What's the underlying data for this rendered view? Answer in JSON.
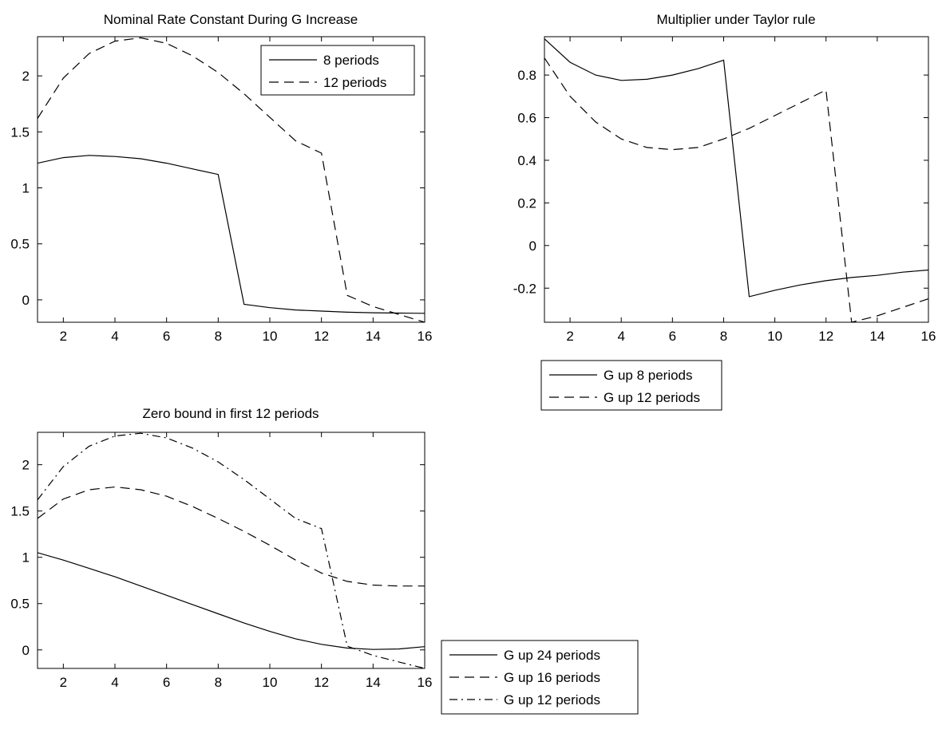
{
  "chart_data": [
    {
      "type": "line",
      "title": "Nominal Rate Constant During G Increase",
      "xlabel": "",
      "ylabel": "",
      "xlim": [
        1,
        16
      ],
      "ylim": [
        -0.2,
        2.35
      ],
      "xticks": [
        2,
        4,
        6,
        8,
        10,
        12,
        14,
        16
      ],
      "yticks": [
        0,
        0.5,
        1,
        1.5,
        2
      ],
      "ytick_labels": [
        "0",
        "0.5",
        "1",
        "1.5",
        "2"
      ],
      "grid": false,
      "legend_position": "top-right",
      "x": [
        1,
        2,
        3,
        4,
        5,
        6,
        7,
        8,
        9,
        10,
        11,
        12,
        13,
        14,
        15,
        16
      ],
      "series": [
        {
          "name": "8 periods",
          "style": "solid",
          "values": [
            1.22,
            1.27,
            1.29,
            1.28,
            1.26,
            1.22,
            1.17,
            1.12,
            -0.04,
            -0.07,
            -0.09,
            -0.1,
            -0.11,
            -0.115,
            -0.118,
            -0.12
          ]
        },
        {
          "name": "12 periods",
          "style": "dashed",
          "values": [
            1.62,
            1.98,
            2.2,
            2.31,
            2.34,
            2.29,
            2.18,
            2.03,
            1.84,
            1.63,
            1.42,
            1.31,
            0.04,
            -0.06,
            -0.13,
            -0.2
          ]
        }
      ]
    },
    {
      "type": "line",
      "title": "Multiplier under Taylor rule",
      "xlabel": "",
      "ylabel": "",
      "xlim": [
        1,
        16
      ],
      "ylim": [
        -0.36,
        0.98
      ],
      "xticks": [
        2,
        4,
        6,
        8,
        10,
        12,
        14,
        16
      ],
      "yticks": [
        -0.2,
        0,
        0.2,
        0.4,
        0.6,
        0.8
      ],
      "ytick_labels": [
        "-0.2",
        "0",
        "0.2",
        "0.4",
        "0.6",
        "0.8"
      ],
      "grid": false,
      "legend_position": "below",
      "x": [
        1,
        2,
        3,
        4,
        5,
        6,
        7,
        8,
        9,
        10,
        11,
        12,
        13,
        14,
        15,
        16
      ],
      "series": [
        {
          "name": "G up 8 periods",
          "style": "solid",
          "values": [
            0.97,
            0.86,
            0.8,
            0.775,
            0.78,
            0.8,
            0.83,
            0.87,
            -0.24,
            -0.21,
            -0.185,
            -0.165,
            -0.15,
            -0.14,
            -0.125,
            -0.115
          ]
        },
        {
          "name": "G up 12 periods",
          "style": "dashed",
          "values": [
            0.88,
            0.7,
            0.58,
            0.5,
            0.46,
            0.45,
            0.46,
            0.5,
            0.55,
            0.61,
            0.67,
            0.73,
            -0.36,
            -0.33,
            -0.29,
            -0.25
          ]
        }
      ]
    },
    {
      "type": "line",
      "title": "Zero bound in first 12 periods",
      "xlabel": "",
      "ylabel": "",
      "xlim": [
        1,
        16
      ],
      "ylim": [
        -0.2,
        2.35
      ],
      "xticks": [
        2,
        4,
        6,
        8,
        10,
        12,
        14,
        16
      ],
      "yticks": [
        0,
        0.5,
        1,
        1.5,
        2
      ],
      "ytick_labels": [
        "0",
        "0.5",
        "1",
        "1.5",
        "2"
      ],
      "grid": false,
      "legend_position": "right",
      "x": [
        1,
        2,
        3,
        4,
        5,
        6,
        7,
        8,
        9,
        10,
        11,
        12,
        13,
        14,
        15,
        16
      ],
      "series": [
        {
          "name": "G up 24 periods",
          "style": "solid",
          "values": [
            1.05,
            0.97,
            0.88,
            0.79,
            0.69,
            0.59,
            0.49,
            0.39,
            0.29,
            0.2,
            0.12,
            0.06,
            0.02,
            0.005,
            0.01,
            0.035
          ]
        },
        {
          "name": "G up 16 periods",
          "style": "dashed",
          "values": [
            1.42,
            1.63,
            1.73,
            1.76,
            1.73,
            1.66,
            1.55,
            1.42,
            1.28,
            1.13,
            0.97,
            0.83,
            0.74,
            0.7,
            0.69,
            0.69
          ]
        },
        {
          "name": "G up 12 periods",
          "style": "dashdot",
          "values": [
            1.62,
            1.98,
            2.2,
            2.31,
            2.34,
            2.29,
            2.18,
            2.03,
            1.84,
            1.63,
            1.42,
            1.31,
            0.04,
            -0.06,
            -0.13,
            -0.2
          ]
        }
      ]
    }
  ]
}
